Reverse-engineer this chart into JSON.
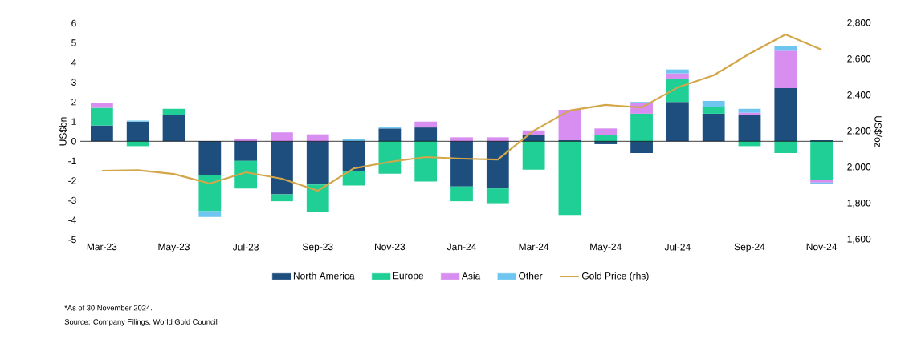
{
  "chart_data": {
    "type": "bar",
    "stacked": true,
    "legend": "bottom",
    "grid": false,
    "categories": [
      "Mar-23",
      null,
      "May-23",
      null,
      "Jul-23",
      null,
      "Sep-23",
      null,
      "Nov-23",
      null,
      "Jan-24",
      null,
      "Mar-24",
      null,
      "May-24",
      null,
      "Jul-24",
      null,
      "Sep-24",
      null,
      "Nov-24"
    ],
    "ylabel": "US$bn",
    "y2label": "US$/oz",
    "ylim": [
      -5,
      6
    ],
    "yticks": [
      -5,
      -4,
      -3,
      -2,
      -1,
      0,
      1,
      2,
      3,
      4,
      5,
      6
    ],
    "y2lim": [
      1600,
      2800
    ],
    "y2ticks": [
      {
        "value": 1600,
        "label": "1,600"
      },
      {
        "value": 1800,
        "label": "1,800"
      },
      {
        "value": 2000,
        "label": "2,000"
      },
      {
        "value": 2200,
        "label": "2,200"
      },
      {
        "value": 2400,
        "label": "2,400"
      },
      {
        "value": 2600,
        "label": "2,600"
      },
      {
        "value": 2800,
        "label": "2,800"
      }
    ],
    "series": [
      {
        "name": "North America",
        "color": "#1d4e7e",
        "values": [
          0.8,
          1.0,
          1.35,
          -1.7,
          -1.0,
          -2.7,
          -2.2,
          -1.5,
          0.65,
          0.7,
          -2.3,
          -2.4,
          0.3,
          0.05,
          -0.15,
          -0.6,
          2.0,
          1.4,
          1.35,
          2.7,
          0.05
        ]
      },
      {
        "name": "Europe",
        "color": "#1fcf96",
        "values": [
          0.9,
          -0.25,
          0.3,
          -1.85,
          -1.4,
          -0.35,
          -1.4,
          -0.75,
          -1.65,
          -2.05,
          -0.75,
          -0.75,
          -1.45,
          -3.75,
          0.3,
          1.4,
          1.15,
          0.35,
          -0.25,
          -0.6,
          -1.95
        ]
      },
      {
        "name": "Asia",
        "color": "#d88ef0",
        "values": [
          0.25,
          0,
          0,
          0,
          0.1,
          0.45,
          0.35,
          0,
          0,
          0.3,
          0.2,
          0.2,
          0.25,
          1.55,
          0.35,
          0.55,
          0.3,
          0,
          0.1,
          1.9,
          -0.15
        ]
      },
      {
        "name": "Other",
        "color": "#6ec6f0",
        "values": [
          0,
          0.05,
          0,
          -0.3,
          0,
          0,
          0,
          0.1,
          0.05,
          0,
          0,
          0,
          0,
          0,
          0,
          0.05,
          0.2,
          0.3,
          0.2,
          0.25,
          -0.05
        ]
      },
      {
        "name": "Gold Price (rhs)",
        "type": "line",
        "axis": "y2",
        "color": "#d4a64a",
        "marker": "none",
        "values": [
          1982,
          1985,
          1964,
          1911,
          1973,
          1938,
          1871,
          1995,
          2031,
          2058,
          2049,
          2044,
          2204,
          2316,
          2347,
          2333,
          2444,
          2511,
          2631,
          2738,
          2653
        ]
      }
    ],
    "ref_lines": [
      {
        "axis": "y",
        "value": 0,
        "color": "#000000"
      }
    ],
    "annotations": [
      "*As of 30 November 2024.",
      "Source: Company Filings, World Gold Council"
    ]
  }
}
